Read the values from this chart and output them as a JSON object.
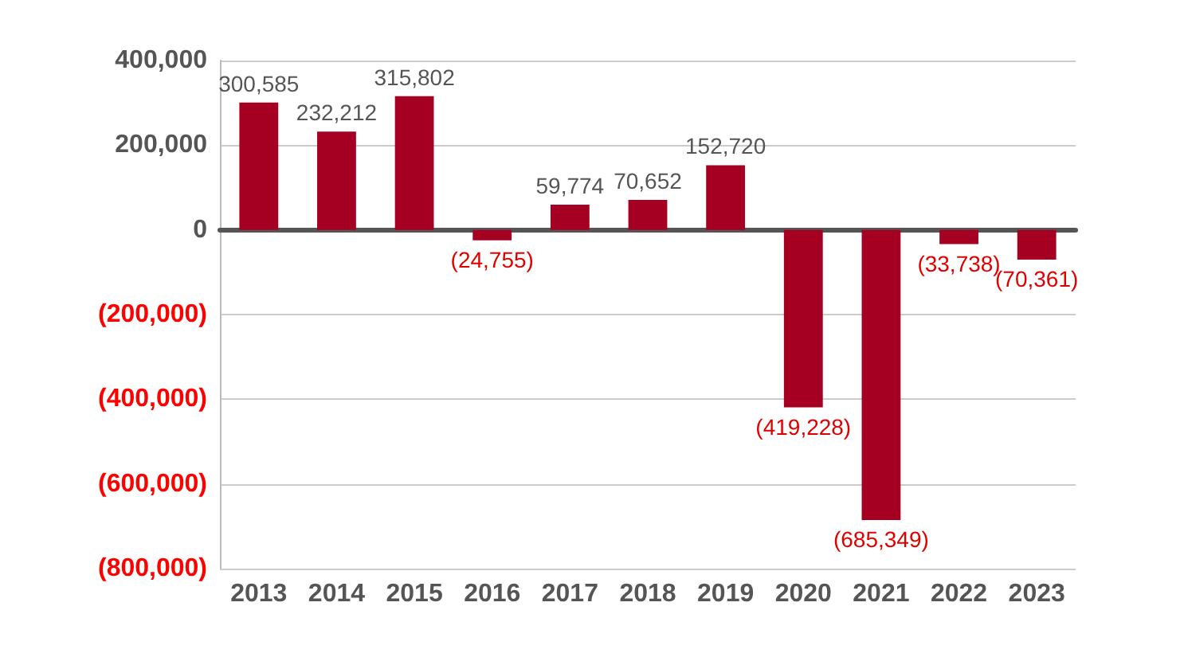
{
  "chart_data": {
    "type": "bar",
    "categories": [
      "2013",
      "2014",
      "2015",
      "2016",
      "2017",
      "2018",
      "2019",
      "2020",
      "2021",
      "2022",
      "2023"
    ],
    "values": [
      300585,
      232212,
      315802,
      -24755,
      59774,
      70652,
      152720,
      -419228,
      -685349,
      -33738,
      -70361
    ],
    "value_labels": [
      "300,585",
      "232,212",
      "315,802",
      "(24,755)",
      "59,774",
      "70,652",
      "152,720",
      "(419,228)",
      "(685,349)",
      "(33,738)",
      "(70,361)"
    ],
    "color": "#a50021",
    "ylim": [
      -800000,
      400000
    ],
    "yticks": [
      {
        "value": 400000,
        "label": "400,000"
      },
      {
        "value": 200000,
        "label": "200,000"
      },
      0,
      {
        "value": -200000,
        "label": "(200,000)"
      },
      {
        "value": -400000,
        "label": "(400,000)"
      },
      {
        "value": -600000,
        "label": "(600,000)"
      },
      {
        "value": -800000,
        "label": "(800,000)"
      }
    ],
    "grid": "y"
  }
}
